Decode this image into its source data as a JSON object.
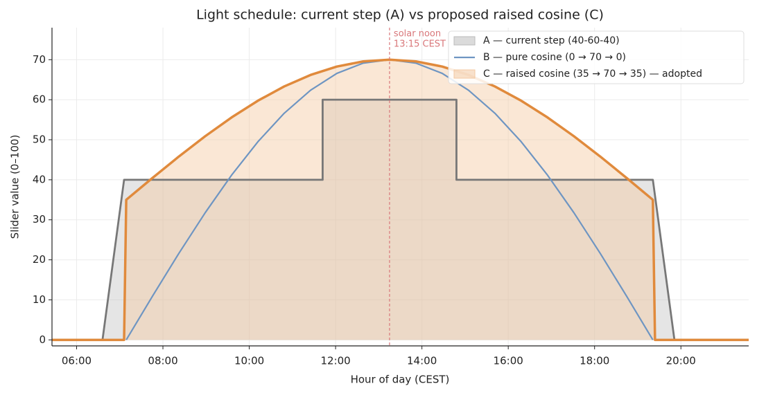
{
  "chart_data": {
    "type": "line",
    "title": "Light schedule: current step (A) vs proposed raised cosine (C)",
    "xlabel": "Hour of day (CEST)",
    "ylabel": "Slider value (0–100)",
    "xlim": [
      5.43,
      21.57
    ],
    "ylim": [
      -1.5,
      78
    ],
    "xticks": [
      {
        "value": 6,
        "label": "06:00"
      },
      {
        "value": 8,
        "label": "08:00"
      },
      {
        "value": 10,
        "label": "10:00"
      },
      {
        "value": 12,
        "label": "12:00"
      },
      {
        "value": 14,
        "label": "14:00"
      },
      {
        "value": 16,
        "label": "16:00"
      },
      {
        "value": 18,
        "label": "18:00"
      },
      {
        "value": 20,
        "label": "20:00"
      }
    ],
    "yticks": [
      0,
      10,
      20,
      30,
      40,
      50,
      60,
      70
    ],
    "grid": true,
    "legend": "upper right",
    "annotation": {
      "lines": [
        "solar noon",
        "13:15 CEST"
      ],
      "x": 13.25,
      "color": "#d9777a"
    },
    "series": [
      {
        "name": "A — current step (40-60-40)",
        "color": "#777777",
        "fill": "#bdbdbd",
        "x": [
          5.43,
          6.6,
          7.1,
          11.7,
          11.7,
          14.8,
          14.8,
          19.35,
          19.85,
          21.57
        ],
        "values": [
          0,
          0,
          40,
          40,
          60,
          60,
          40,
          40,
          0,
          0
        ]
      },
      {
        "name": "B — pure cosine (0 → 70 → 0)",
        "color": "#6e95c2",
        "x": [
          7.15,
          7.76,
          8.37,
          8.98,
          9.59,
          10.2,
          10.81,
          11.42,
          12.03,
          12.64,
          13.25,
          13.86,
          14.47,
          15.08,
          15.69,
          16.3,
          16.91,
          17.52,
          18.13,
          18.74,
          19.35
        ],
        "values": [
          0,
          10.95,
          21.63,
          31.78,
          41.15,
          49.5,
          56.63,
          62.37,
          66.58,
          69.14,
          70,
          69.14,
          66.58,
          62.37,
          56.63,
          49.5,
          41.15,
          31.78,
          21.63,
          10.95,
          0
        ]
      },
      {
        "name": "C — raised cosine (35 → 70 → 35) — adopted",
        "color": "#e08a3c",
        "fill": "#f3c9a2",
        "x": [
          5.43,
          7.1,
          7.15,
          7.76,
          8.37,
          8.98,
          9.59,
          10.2,
          10.81,
          11.42,
          12.03,
          12.64,
          13.25,
          13.86,
          14.47,
          15.08,
          15.69,
          16.3,
          16.91,
          17.52,
          18.13,
          18.74,
          19.35,
          19.4,
          21.57
        ],
        "values": [
          0,
          0,
          35,
          40.47,
          45.82,
          50.89,
          55.57,
          59.75,
          63.32,
          66.19,
          68.29,
          69.57,
          70,
          69.57,
          68.29,
          66.19,
          63.32,
          59.75,
          55.57,
          50.89,
          45.82,
          40.47,
          35,
          0,
          0
        ]
      }
    ]
  }
}
